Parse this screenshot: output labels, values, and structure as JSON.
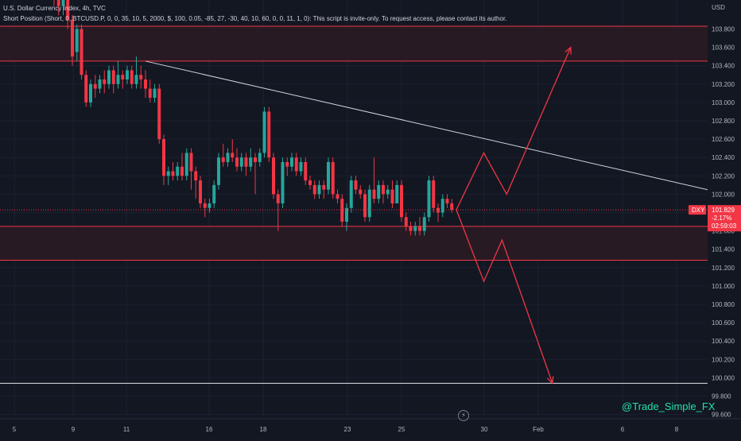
{
  "legend": {
    "line1": "U.S. Dollar Currency Index, 4h, TVC",
    "line2": "Short Position (Short, 0, BTCUSD.P, 0, 0, 35, 10, 5, 2000, $, 100, 0.05, -85, 27, -30, 40, 10, 60, 0, 0, 11, 1, 0): This script is invite-only. To request access, please contact its author."
  },
  "watermark": "@Trade_Simple_FX",
  "price_axis": {
    "currency": "USD",
    "symbol_tag": "DXY",
    "last_price": "101.829",
    "change_pct": "-2.17%",
    "countdown": "02:59:03"
  },
  "colors": {
    "background": "#131722",
    "bull": "#26a69a",
    "bear": "#f23645",
    "zone_fill": "#2a1b24",
    "zone_border": "#f23645",
    "trendline": "#d1d4dc",
    "projection": "#f23645",
    "watermark": "#26e0a8"
  },
  "chart_data": {
    "type": "candlestick",
    "title": "U.S. Dollar Currency Index, 4h, TVC",
    "ylim": [
      99.6,
      104.2
    ],
    "x_ticks": [
      "5",
      "9",
      "11",
      "16",
      "18",
      "23",
      "25",
      "30",
      "Feb",
      "6",
      "8"
    ],
    "y_ticks": [
      "103.800",
      "103.600",
      "103.400",
      "103.200",
      "103.000",
      "102.800",
      "102.600",
      "102.400",
      "102.200",
      "102.000",
      "101.800",
      "101.600",
      "101.400",
      "101.200",
      "101.000",
      "100.800",
      "100.600",
      "100.400",
      "100.200",
      "100.000",
      "99.800",
      "99.600"
    ],
    "candles": [
      [
        104.3,
        104.25,
        104.4,
        104.05
      ],
      [
        104.2,
        104.05,
        104.3,
        103.95
      ],
      [
        104.05,
        104.15,
        104.22,
        103.95
      ],
      [
        104.15,
        103.9,
        104.2,
        103.8
      ],
      [
        103.9,
        103.5,
        103.95,
        103.4
      ],
      [
        103.55,
        103.8,
        103.85,
        103.45
      ],
      [
        103.8,
        103.3,
        103.85,
        103.25
      ],
      [
        103.3,
        103.0,
        103.35,
        102.95
      ],
      [
        103.0,
        103.2,
        103.25,
        102.95
      ],
      [
        103.2,
        103.15,
        103.3,
        103.05
      ],
      [
        103.15,
        103.25,
        103.3,
        103.1
      ],
      [
        103.25,
        103.2,
        103.35,
        103.1
      ],
      [
        103.2,
        103.35,
        103.4,
        103.15
      ],
      [
        103.35,
        103.2,
        103.4,
        103.1
      ],
      [
        103.2,
        103.3,
        103.45,
        103.15
      ],
      [
        103.3,
        103.25,
        103.35,
        103.15
      ],
      [
        103.25,
        103.35,
        103.4,
        103.2
      ],
      [
        103.35,
        103.2,
        103.4,
        103.15
      ],
      [
        103.2,
        103.3,
        103.5,
        103.15
      ],
      [
        103.3,
        103.25,
        103.4,
        103.15
      ],
      [
        103.25,
        103.15,
        103.35,
        103.05
      ],
      [
        103.15,
        103.05,
        103.25,
        103.0
      ],
      [
        103.05,
        103.15,
        103.2,
        103.0
      ],
      [
        103.15,
        102.6,
        103.2,
        102.55
      ],
      [
        102.6,
        102.2,
        102.65,
        102.1
      ],
      [
        102.2,
        102.25,
        102.3,
        102.1
      ],
      [
        102.25,
        102.2,
        102.35,
        102.15
      ],
      [
        102.2,
        102.3,
        102.35,
        102.15
      ],
      [
        102.3,
        102.2,
        102.45,
        102.15
      ],
      [
        102.2,
        102.45,
        102.5,
        102.15
      ],
      [
        102.45,
        102.25,
        102.5,
        102.05
      ],
      [
        102.25,
        102.15,
        102.3,
        101.95
      ],
      [
        102.15,
        101.9,
        102.2,
        101.85
      ],
      [
        101.9,
        101.85,
        101.95,
        101.75
      ],
      [
        101.85,
        101.9,
        101.95,
        101.8
      ],
      [
        101.9,
        102.1,
        102.15,
        101.85
      ],
      [
        102.1,
        102.4,
        102.45,
        102.05
      ],
      [
        102.4,
        102.35,
        102.55,
        102.3
      ],
      [
        102.35,
        102.45,
        102.5,
        102.3
      ],
      [
        102.45,
        102.4,
        102.6,
        102.35
      ],
      [
        102.4,
        102.3,
        102.5,
        102.25
      ],
      [
        102.3,
        102.4,
        102.45,
        102.25
      ],
      [
        102.4,
        102.3,
        102.45,
        102.2
      ],
      [
        102.3,
        102.4,
        102.5,
        102.25
      ],
      [
        102.4,
        102.35,
        102.45,
        102.0
      ],
      [
        102.35,
        102.45,
        102.5,
        102.3
      ],
      [
        102.45,
        102.9,
        102.95,
        102.4
      ],
      [
        102.9,
        102.4,
        102.95,
        102.35
      ],
      [
        102.4,
        102.0,
        102.45,
        101.95
      ],
      [
        102.0,
        101.9,
        102.05,
        101.6
      ],
      [
        101.9,
        102.35,
        102.4,
        101.85
      ],
      [
        102.35,
        102.3,
        102.4,
        102.2
      ],
      [
        102.3,
        102.4,
        102.45,
        102.25
      ],
      [
        102.4,
        102.25,
        102.45,
        102.2
      ],
      [
        102.25,
        102.35,
        102.4,
        102.2
      ],
      [
        102.35,
        102.15,
        102.4,
        102.1
      ],
      [
        102.15,
        102.1,
        102.2,
        102.05
      ],
      [
        102.1,
        102.0,
        102.15,
        101.95
      ],
      [
        102.0,
        102.1,
        102.15,
        101.95
      ],
      [
        102.1,
        102.05,
        102.15,
        101.95
      ],
      [
        102.05,
        102.35,
        102.4,
        102.0
      ],
      [
        102.35,
        102.0,
        102.4,
        101.95
      ],
      [
        102.0,
        101.95,
        102.05,
        101.9
      ],
      [
        101.95,
        101.7,
        102.0,
        101.65
      ],
      [
        101.7,
        101.85,
        101.9,
        101.6
      ],
      [
        101.85,
        102.15,
        102.2,
        101.8
      ],
      [
        102.15,
        102.05,
        102.2,
        102.0
      ],
      [
        102.05,
        102.0,
        102.1,
        101.95
      ],
      [
        102.0,
        101.75,
        102.05,
        101.7
      ],
      [
        101.75,
        102.05,
        102.1,
        101.7
      ],
      [
        102.05,
        101.95,
        102.4,
        101.9
      ],
      [
        101.95,
        102.1,
        102.15,
        101.9
      ],
      [
        102.1,
        102.0,
        102.15,
        101.9
      ],
      [
        102.0,
        102.05,
        102.1,
        101.95
      ],
      [
        102.05,
        101.9,
        102.15,
        101.85
      ],
      [
        101.9,
        102.1,
        102.15,
        101.9
      ],
      [
        102.1,
        101.75,
        102.15,
        101.7
      ],
      [
        101.75,
        101.65,
        101.8,
        101.6
      ],
      [
        101.65,
        101.6,
        101.7,
        101.55
      ],
      [
        101.6,
        101.65,
        101.7,
        101.55
      ],
      [
        101.65,
        101.6,
        101.75,
        101.55
      ],
      [
        101.6,
        101.75,
        101.8,
        101.55
      ],
      [
        101.75,
        102.15,
        102.2,
        101.7
      ],
      [
        102.15,
        101.85,
        102.2,
        101.8
      ],
      [
        101.85,
        101.8,
        101.9,
        101.7
      ],
      [
        101.8,
        101.95,
        102.0,
        101.75
      ],
      [
        101.95,
        101.9,
        102.0,
        101.85
      ],
      [
        101.9,
        101.83,
        101.95,
        101.8
      ]
    ],
    "zones": [
      {
        "top": 103.83,
        "bottom": 103.45
      },
      {
        "top": 101.65,
        "bottom": 101.28
      }
    ],
    "horizontal_line": 99.94,
    "trendline": [
      {
        "i": 20,
        "y": 103.45
      },
      {
        "i": 156,
        "y": 101.9
      }
    ],
    "projection_up": [
      {
        "i": 88,
        "y": 101.83
      },
      {
        "i": 94,
        "y": 102.45
      },
      {
        "i": 99,
        "y": 102.0
      },
      {
        "i": 113,
        "y": 103.6
      }
    ],
    "projection_down": [
      {
        "i": 88,
        "y": 101.83
      },
      {
        "i": 94,
        "y": 101.05
      },
      {
        "i": 98,
        "y": 101.5
      },
      {
        "i": 109,
        "y": 99.94
      }
    ]
  }
}
